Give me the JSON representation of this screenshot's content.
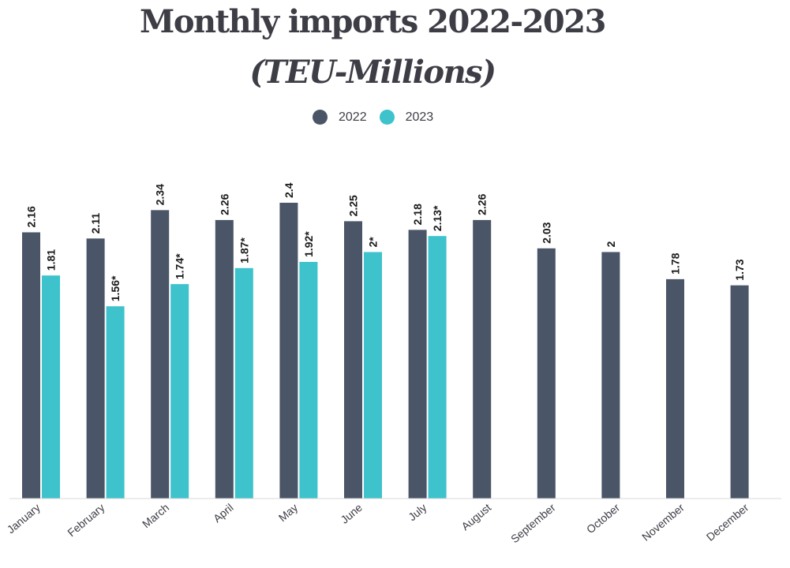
{
  "title": "Monthly imports 2022-2023",
  "subtitle": "(TEU-Millions)",
  "chart_data": {
    "type": "bar",
    "title": "Monthly imports 2022-2023",
    "subtitle": "(TEU-Millions)",
    "xlabel": "",
    "ylabel": "",
    "ylim": [
      0,
      2.4
    ],
    "grid": false,
    "legend_position": "top-center",
    "categories": [
      "January",
      "February",
      "March",
      "April",
      "May",
      "June",
      "July",
      "August",
      "September",
      "October",
      "November",
      "December"
    ],
    "series": [
      {
        "name": "2022",
        "color": "#4a5567",
        "values": [
          2.16,
          2.11,
          2.34,
          2.26,
          2.4,
          2.25,
          2.18,
          2.26,
          2.03,
          2,
          1.78,
          1.73
        ],
        "labels": [
          "2.16",
          "2.11",
          "2.34",
          "2.26",
          "2.4",
          "2.25",
          "2.18",
          "2.26",
          "2.03",
          "2",
          "1.78",
          "1.73"
        ]
      },
      {
        "name": "2023",
        "color": "#3ec2cc",
        "values": [
          1.81,
          1.56,
          1.74,
          1.87,
          1.92,
          2,
          2.13,
          null,
          null,
          null,
          null,
          null
        ],
        "labels": [
          "1.81",
          "1.56*",
          "1.74*",
          "1.87*",
          "1.92*",
          "2*",
          "2.13*",
          null,
          null,
          null,
          null,
          null
        ]
      }
    ]
  }
}
